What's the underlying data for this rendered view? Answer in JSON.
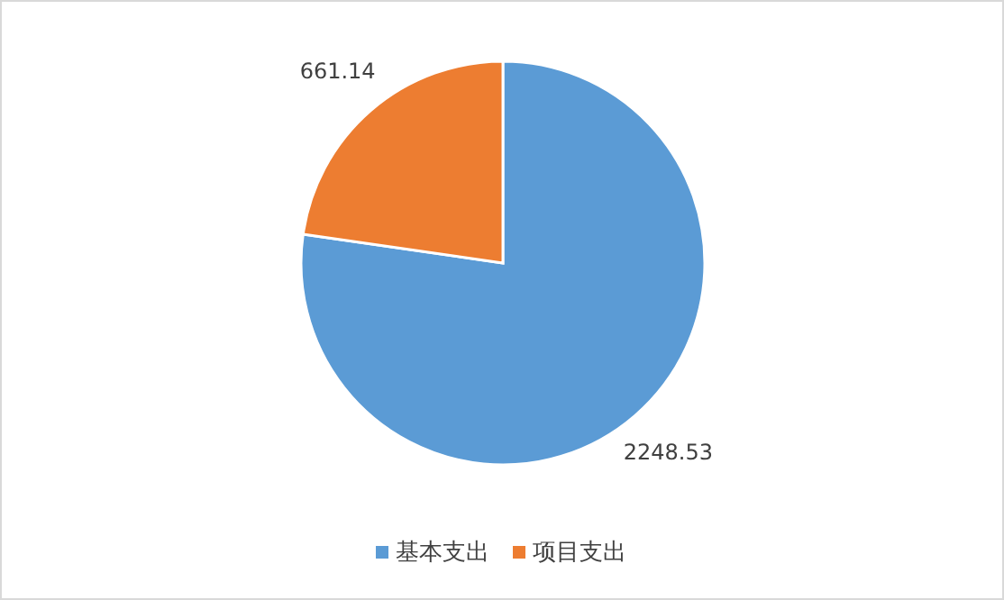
{
  "chart_data": {
    "type": "pie",
    "categories": [
      "基本支出",
      "项目支出"
    ],
    "values": [
      2248.53,
      661.14
    ],
    "colors": [
      "#5b9bd5",
      "#ed7d31"
    ],
    "data_labels": true,
    "legend": "bottom"
  }
}
